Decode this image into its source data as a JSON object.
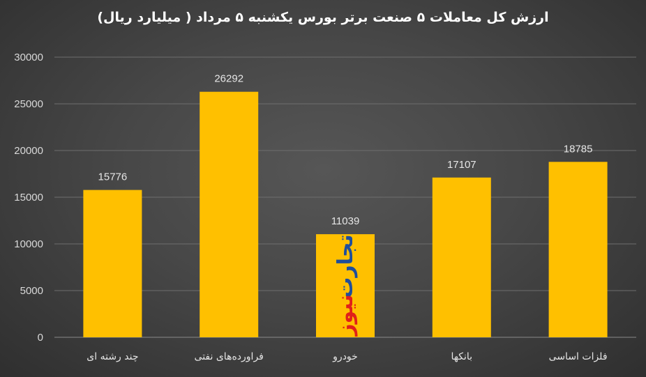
{
  "chart_data": {
    "type": "bar",
    "title": "ارزش کل معاملات ۵ صنعت برتر بورس یکشنبه ۵ مرداد ( میلیارد ریال)",
    "categories": [
      "چند رشته ای",
      "فراورده‌های نفتی",
      "خودرو",
      "بانکها",
      "فلزات اساسی"
    ],
    "values": [
      15776,
      26292,
      11039,
      17107,
      18785
    ],
    "data_labels": [
      "15776",
      "26292",
      "11039",
      "17107",
      "18785"
    ],
    "ylim": [
      0,
      30000
    ],
    "yticks": [
      "0",
      "5000",
      "10000",
      "15000",
      "20000",
      "25000",
      "30000"
    ],
    "grid": true,
    "legend": "none",
    "xlabel": "",
    "ylabel": ""
  },
  "watermark": {
    "line1": "تجارت",
    "line2": "نیوز"
  },
  "colors": {
    "bar": "#ffc000",
    "grid": "#6e6e6e",
    "axis": "#8a8a8a",
    "watermark_blue": "#1f4e9c",
    "watermark_red": "#e0201a"
  }
}
